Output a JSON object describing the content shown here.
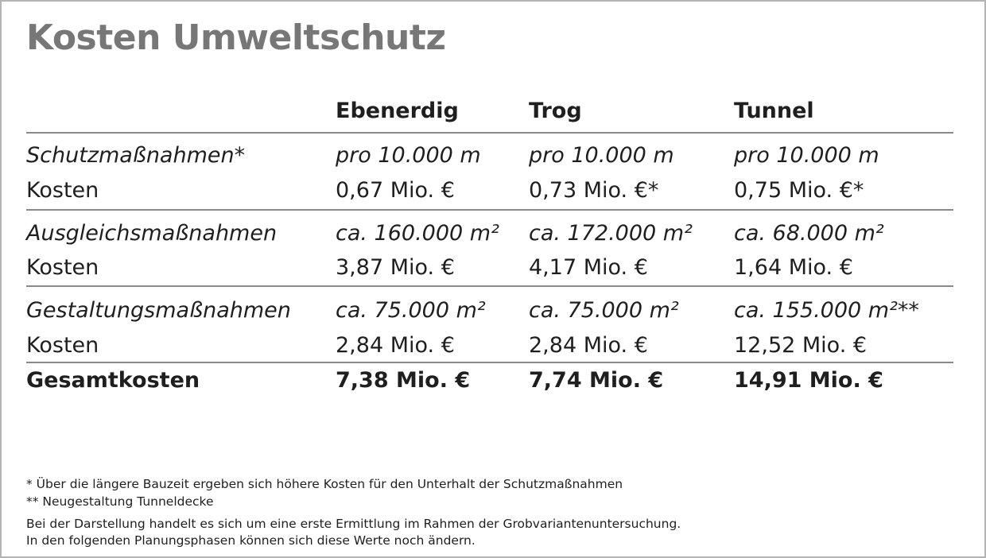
{
  "title": "Kosten Umweltschutz",
  "columns": [
    "Ebenerdig",
    "Trog",
    "Tunnel"
  ],
  "sections": [
    {
      "label": "Schutzmaßnahmen*",
      "values": [
        "pro 10.000 m",
        "pro 10.000 m",
        "pro 10.000 m"
      ],
      "cost_label": "Kosten",
      "costs": [
        "0,67 Mio. €",
        "0,73 Mio. €*",
        "0,75 Mio. €*"
      ]
    },
    {
      "label": "Ausgleichsmaßnahmen",
      "values": [
        "ca. 160.000 m²",
        "ca. 172.000 m²",
        "ca. 68.000 m²"
      ],
      "cost_label": "Kosten",
      "costs": [
        "3,87 Mio. €",
        "4,17 Mio. €",
        "1,64 Mio. €"
      ]
    },
    {
      "label": "Gestaltungsmaßnahmen",
      "values": [
        "ca. 75.000 m²",
        "ca. 75.000 m²",
        "ca. 155.000 m²**"
      ],
      "cost_label": "Kosten",
      "costs": [
        "2,84 Mio. €",
        "2,84 Mio. €",
        "12,52 Mio. €"
      ]
    }
  ],
  "total": {
    "label": "Gesamtkosten",
    "values": [
      "7,38 Mio. €",
      "7,74 Mio. €",
      "14,91 Mio. €"
    ]
  },
  "footnotes": [
    "* Über die längere Bauzeit ergeben sich höhere Kosten für den Unterhalt der Schutzmaßnahmen",
    "** Neugestaltung Tunneldecke"
  ],
  "disclaimer": [
    "Bei der Darstellung handelt es sich um eine erste Ermittlung im Rahmen der Grobvariantenuntersuchung.",
    "In den folgenden Planungsphasen können sich diese Werte noch ändern."
  ]
}
